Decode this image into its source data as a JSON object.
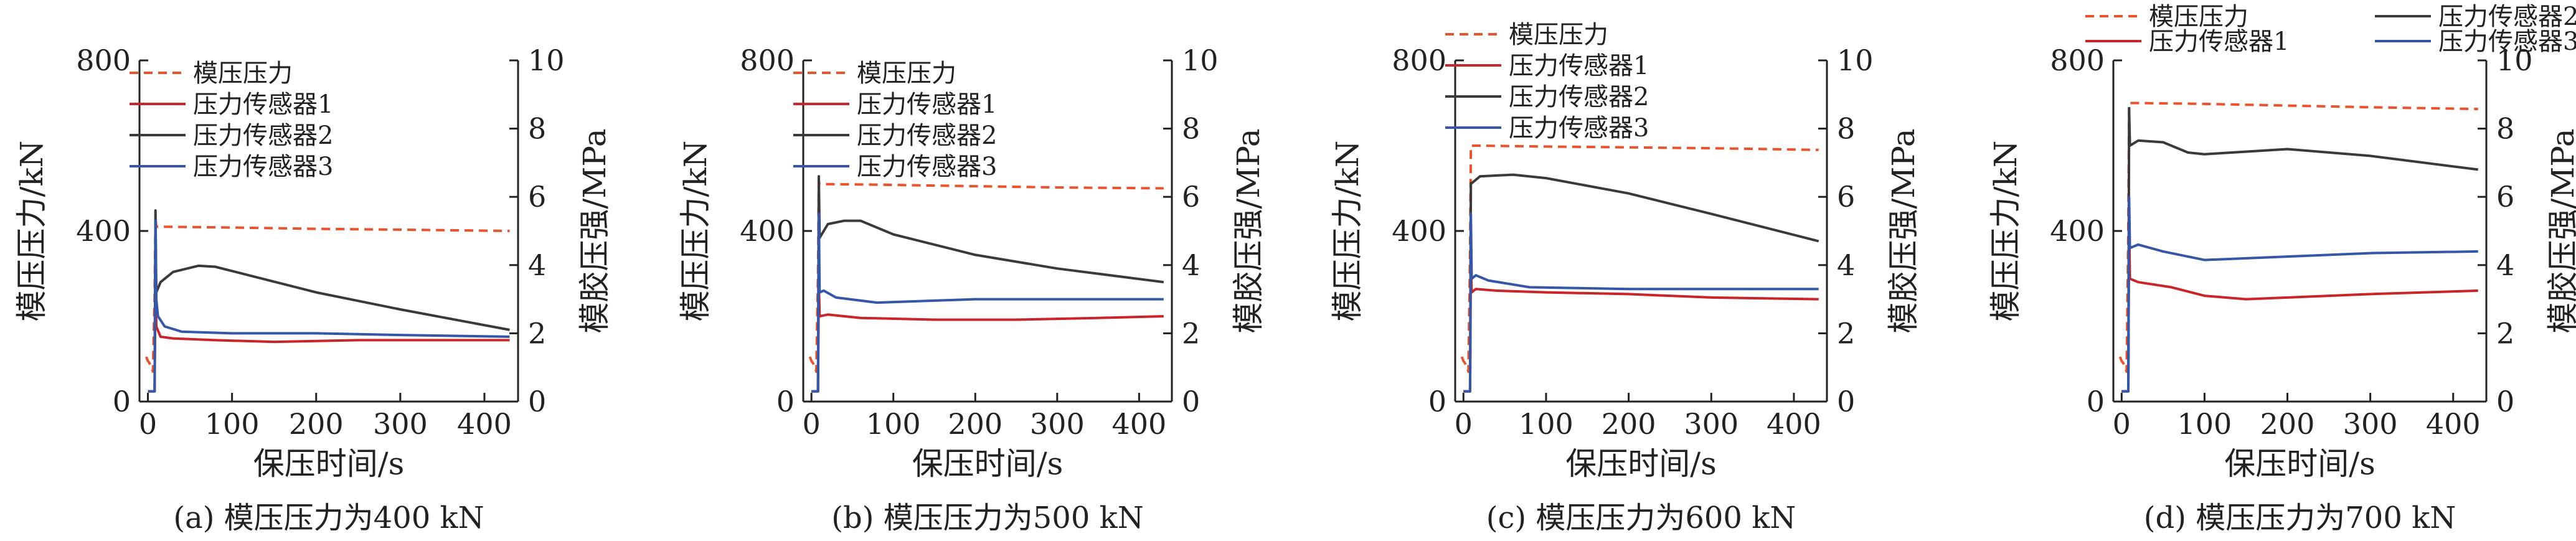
{
  "figure": {
    "colors": {
      "mold_pressure": "#e8542e",
      "sensor1": "#c8262b",
      "sensor2": "#3a3a3a",
      "sensor3": "#3557a8",
      "axis": "#222222"
    }
  },
  "chart_data": [
    {
      "type": "line",
      "caption": "(a) 模压压力为400 kN",
      "xlabel": "保压时间/s",
      "ylabel_left": "模压压力/kN",
      "ylabel_right": "模胶压强/MPa",
      "xlim": [
        -10,
        440
      ],
      "ylim_left": [
        0,
        800
      ],
      "ylim_right": [
        0,
        10
      ],
      "xticks": [
        0,
        100,
        200,
        300,
        400
      ],
      "yticks_left": [
        0,
        400,
        800
      ],
      "yticks_right": [
        0,
        2,
        4,
        6,
        8,
        10
      ],
      "legend_layout": "vertical",
      "series": [
        {
          "name": "模压压力",
          "axis": "left",
          "style": "dashed",
          "color_key": "mold_pressure",
          "points": [
            [
              -2,
              105
            ],
            [
              0,
              95
            ],
            [
              2,
              90
            ],
            [
              4,
              80
            ],
            [
              6,
              70
            ],
            [
              8,
              250
            ],
            [
              9,
              430
            ],
            [
              10,
              410
            ],
            [
              20,
              410
            ],
            [
              100,
              408
            ],
            [
              200,
              405
            ],
            [
              300,
              403
            ],
            [
              430,
              400
            ]
          ]
        },
        {
          "name": "压力传感器1",
          "axis": "right",
          "style": "solid",
          "color_key": "sensor1",
          "points": [
            [
              0,
              0.3
            ],
            [
              8,
              0.3
            ],
            [
              9,
              4.0
            ],
            [
              10,
              2.2
            ],
            [
              15,
              1.9
            ],
            [
              30,
              1.85
            ],
            [
              80,
              1.8
            ],
            [
              150,
              1.75
            ],
            [
              250,
              1.8
            ],
            [
              350,
              1.8
            ],
            [
              430,
              1.8
            ]
          ]
        },
        {
          "name": "压力传感器2",
          "axis": "right",
          "style": "solid",
          "color_key": "sensor2",
          "points": [
            [
              0,
              0.3
            ],
            [
              8,
              0.3
            ],
            [
              9,
              5.6
            ],
            [
              10,
              3.2
            ],
            [
              15,
              3.5
            ],
            [
              30,
              3.8
            ],
            [
              60,
              3.98
            ],
            [
              80,
              3.95
            ],
            [
              120,
              3.7
            ],
            [
              200,
              3.2
            ],
            [
              300,
              2.7
            ],
            [
              430,
              2.1
            ]
          ]
        },
        {
          "name": "压力传感器3",
          "axis": "right",
          "style": "solid",
          "color_key": "sensor3",
          "points": [
            [
              0,
              0.3
            ],
            [
              8,
              0.3
            ],
            [
              9,
              5.3
            ],
            [
              10,
              3.0
            ],
            [
              12,
              2.5
            ],
            [
              20,
              2.2
            ],
            [
              40,
              2.05
            ],
            [
              100,
              2.0
            ],
            [
              200,
              2.0
            ],
            [
              300,
              1.95
            ],
            [
              430,
              1.9
            ]
          ]
        }
      ]
    },
    {
      "type": "line",
      "caption": "(b) 模压压力为500 kN",
      "xlabel": "保压时间/s",
      "ylabel_left": "模压压力/kN",
      "ylabel_right": "模胶压强/MPa",
      "xlim": [
        -10,
        440
      ],
      "ylim_left": [
        0,
        800
      ],
      "ylim_right": [
        0,
        10
      ],
      "xticks": [
        0,
        100,
        200,
        300,
        400
      ],
      "yticks_left": [
        0,
        400,
        800
      ],
      "yticks_right": [
        0,
        2,
        4,
        6,
        8,
        10
      ],
      "legend_layout": "vertical",
      "series": [
        {
          "name": "模压压力",
          "axis": "left",
          "style": "dashed",
          "color_key": "mold_pressure",
          "points": [
            [
              -2,
              105
            ],
            [
              0,
              95
            ],
            [
              2,
              90
            ],
            [
              4,
              80
            ],
            [
              6,
              70
            ],
            [
              8,
              300
            ],
            [
              9,
              515
            ],
            [
              10,
              510
            ],
            [
              20,
              510
            ],
            [
              100,
              508
            ],
            [
              200,
              505
            ],
            [
              300,
              502
            ],
            [
              430,
              500
            ]
          ]
        },
        {
          "name": "压力传感器1",
          "axis": "right",
          "style": "solid",
          "color_key": "sensor1",
          "points": [
            [
              0,
              0.3
            ],
            [
              8,
              0.3
            ],
            [
              9,
              3.5
            ],
            [
              10,
              2.5
            ],
            [
              20,
              2.55
            ],
            [
              60,
              2.45
            ],
            [
              150,
              2.4
            ],
            [
              250,
              2.4
            ],
            [
              350,
              2.45
            ],
            [
              430,
              2.5
            ]
          ]
        },
        {
          "name": "压力传感器2",
          "axis": "right",
          "style": "solid",
          "color_key": "sensor2",
          "points": [
            [
              0,
              0.3
            ],
            [
              8,
              0.3
            ],
            [
              9,
              6.6
            ],
            [
              10,
              4.8
            ],
            [
              20,
              5.2
            ],
            [
              40,
              5.3
            ],
            [
              60,
              5.3
            ],
            [
              100,
              4.9
            ],
            [
              200,
              4.3
            ],
            [
              300,
              3.9
            ],
            [
              430,
              3.5
            ]
          ]
        },
        {
          "name": "压力传感器3",
          "axis": "right",
          "style": "solid",
          "color_key": "sensor3",
          "points": [
            [
              0,
              0.3
            ],
            [
              8,
              0.3
            ],
            [
              9,
              5.5
            ],
            [
              10,
              3.2
            ],
            [
              15,
              3.25
            ],
            [
              30,
              3.05
            ],
            [
              80,
              2.9
            ],
            [
              200,
              3.0
            ],
            [
              300,
              3.0
            ],
            [
              430,
              3.0
            ]
          ]
        }
      ]
    },
    {
      "type": "line",
      "caption": "(c) 模压压力为600 kN",
      "xlabel": "保压时间/s",
      "ylabel_left": "模压压力/kN",
      "ylabel_right": "模胶压强/MPa",
      "xlim": [
        -10,
        440
      ],
      "ylim_left": [
        0,
        800
      ],
      "ylim_right": [
        0,
        10
      ],
      "xticks": [
        0,
        100,
        200,
        300,
        400
      ],
      "yticks_left": [
        0,
        400,
        800
      ],
      "yticks_right": [
        0,
        2,
        4,
        6,
        8,
        10
      ],
      "legend_layout": "vertical",
      "series": [
        {
          "name": "模压压力",
          "axis": "left",
          "style": "dashed",
          "color_key": "mold_pressure",
          "points": [
            [
              -2,
              105
            ],
            [
              0,
              95
            ],
            [
              2,
              90
            ],
            [
              4,
              80
            ],
            [
              6,
              70
            ],
            [
              8,
              350
            ],
            [
              9,
              600
            ],
            [
              10,
              600
            ],
            [
              20,
              600
            ],
            [
              100,
              598
            ],
            [
              200,
              596
            ],
            [
              300,
              594
            ],
            [
              430,
              590
            ]
          ]
        },
        {
          "name": "压力传感器1",
          "axis": "right",
          "style": "solid",
          "color_key": "sensor1",
          "points": [
            [
              0,
              0.3
            ],
            [
              8,
              0.3
            ],
            [
              9,
              4.0
            ],
            [
              10,
              3.2
            ],
            [
              15,
              3.3
            ],
            [
              40,
              3.25
            ],
            [
              100,
              3.2
            ],
            [
              200,
              3.15
            ],
            [
              300,
              3.05
            ],
            [
              430,
              3.0
            ]
          ]
        },
        {
          "name": "压力传感器2",
          "axis": "right",
          "style": "solid",
          "color_key": "sensor2",
          "points": [
            [
              0,
              0.3
            ],
            [
              8,
              0.3
            ],
            [
              9,
              6.4
            ],
            [
              10,
              6.4
            ],
            [
              20,
              6.6
            ],
            [
              60,
              6.65
            ],
            [
              100,
              6.55
            ],
            [
              200,
              6.1
            ],
            [
              300,
              5.5
            ],
            [
              430,
              4.7
            ]
          ]
        },
        {
          "name": "压力传感器3",
          "axis": "right",
          "style": "solid",
          "color_key": "sensor3",
          "points": [
            [
              0,
              0.3
            ],
            [
              8,
              0.3
            ],
            [
              9,
              5.5
            ],
            [
              10,
              3.6
            ],
            [
              15,
              3.7
            ],
            [
              30,
              3.55
            ],
            [
              80,
              3.35
            ],
            [
              200,
              3.3
            ],
            [
              300,
              3.3
            ],
            [
              430,
              3.3
            ]
          ]
        }
      ]
    },
    {
      "type": "line",
      "caption": "(d) 模压压力为700 kN",
      "xlabel": "保压时间/s",
      "ylabel_left": "模压压力/kN",
      "ylabel_right": "模胶压强/MPa",
      "xlim": [
        -10,
        440
      ],
      "ylim_left": [
        0,
        800
      ],
      "ylim_right": [
        0,
        10
      ],
      "xticks": [
        0,
        100,
        200,
        300,
        400
      ],
      "yticks_left": [
        0,
        400,
        800
      ],
      "yticks_right": [
        0,
        2,
        4,
        6,
        8,
        10
      ],
      "legend_layout": "two-column",
      "series": [
        {
          "name": "模压压力",
          "axis": "left",
          "style": "dashed",
          "color_key": "mold_pressure",
          "points": [
            [
              -2,
              105
            ],
            [
              0,
              95
            ],
            [
              2,
              90
            ],
            [
              4,
              80
            ],
            [
              6,
              70
            ],
            [
              8,
              400
            ],
            [
              9,
              700
            ],
            [
              10,
              700
            ],
            [
              20,
              700
            ],
            [
              100,
              698
            ],
            [
              200,
              694
            ],
            [
              300,
              690
            ],
            [
              430,
              686
            ]
          ]
        },
        {
          "name": "压力传感器1",
          "axis": "right",
          "style": "solid",
          "color_key": "sensor1",
          "points": [
            [
              0,
              0.3
            ],
            [
              8,
              0.3
            ],
            [
              9,
              5.3
            ],
            [
              10,
              3.6
            ],
            [
              20,
              3.5
            ],
            [
              60,
              3.35
            ],
            [
              100,
              3.1
            ],
            [
              150,
              3.0
            ],
            [
              200,
              3.05
            ],
            [
              300,
              3.15
            ],
            [
              430,
              3.25
            ]
          ]
        },
        {
          "name": "压力传感器2",
          "axis": "right",
          "style": "solid",
          "color_key": "sensor2",
          "points": [
            [
              0,
              0.3
            ],
            [
              8,
              0.3
            ],
            [
              9,
              8.6
            ],
            [
              10,
              7.5
            ],
            [
              20,
              7.65
            ],
            [
              50,
              7.6
            ],
            [
              80,
              7.3
            ],
            [
              100,
              7.25
            ],
            [
              200,
              7.4
            ],
            [
              300,
              7.2
            ],
            [
              430,
              6.8
            ]
          ]
        },
        {
          "name": "压力传感器3",
          "axis": "right",
          "style": "solid",
          "color_key": "sensor3",
          "points": [
            [
              0,
              0.3
            ],
            [
              8,
              0.3
            ],
            [
              9,
              6.0
            ],
            [
              10,
              4.5
            ],
            [
              20,
              4.6
            ],
            [
              50,
              4.4
            ],
            [
              100,
              4.15
            ],
            [
              200,
              4.25
            ],
            [
              300,
              4.35
            ],
            [
              430,
              4.4
            ]
          ]
        }
      ]
    }
  ]
}
